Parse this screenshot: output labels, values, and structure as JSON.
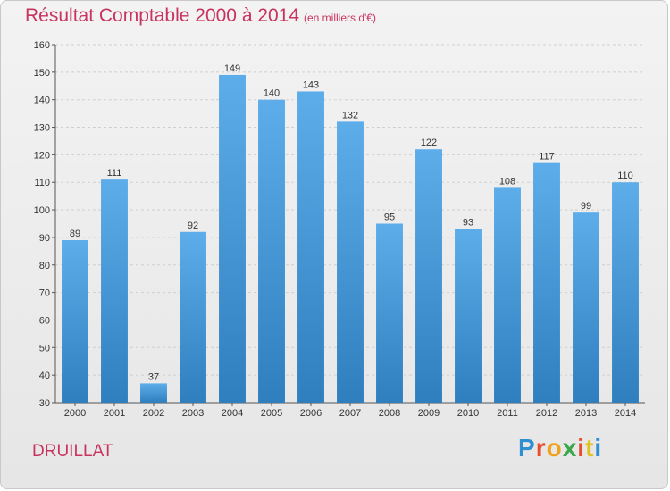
{
  "title": "Résultat Comptable 2000 à 2014",
  "subtitle": "(en milliers d'€)",
  "place": "DRUILLAT",
  "logo": {
    "letters": [
      "P",
      "r",
      "o",
      "x",
      "i",
      "t",
      "i"
    ],
    "colors": [
      "#2f8fd0",
      "#e84d2a",
      "#f2a11c",
      "#3aa84a",
      "#e84d2a",
      "#e2c21f",
      "#2f8fd0"
    ]
  },
  "colors": {
    "bar_top": "#5dadea",
    "bar_bottom": "#2f7fbf",
    "grid": "#cfcfcf",
    "title": "#c8335f"
  },
  "chart_data": {
    "type": "bar",
    "title": "Résultat Comptable 2000 à 2014",
    "subtitle": "(en milliers d'€)",
    "xlabel": "",
    "ylabel": "",
    "categories": [
      "2000",
      "2001",
      "2002",
      "2003",
      "2004",
      "2005",
      "2006",
      "2007",
      "2008",
      "2009",
      "2010",
      "2011",
      "2012",
      "2013",
      "2014"
    ],
    "values": [
      89,
      111,
      37,
      92,
      149,
      140,
      143,
      132,
      95,
      122,
      93,
      108,
      117,
      99,
      110
    ],
    "ylim": [
      30,
      160
    ],
    "yticks": [
      30,
      40,
      50,
      60,
      70,
      80,
      90,
      100,
      110,
      120,
      130,
      140,
      150,
      160
    ],
    "grid": true,
    "legend": "none"
  }
}
